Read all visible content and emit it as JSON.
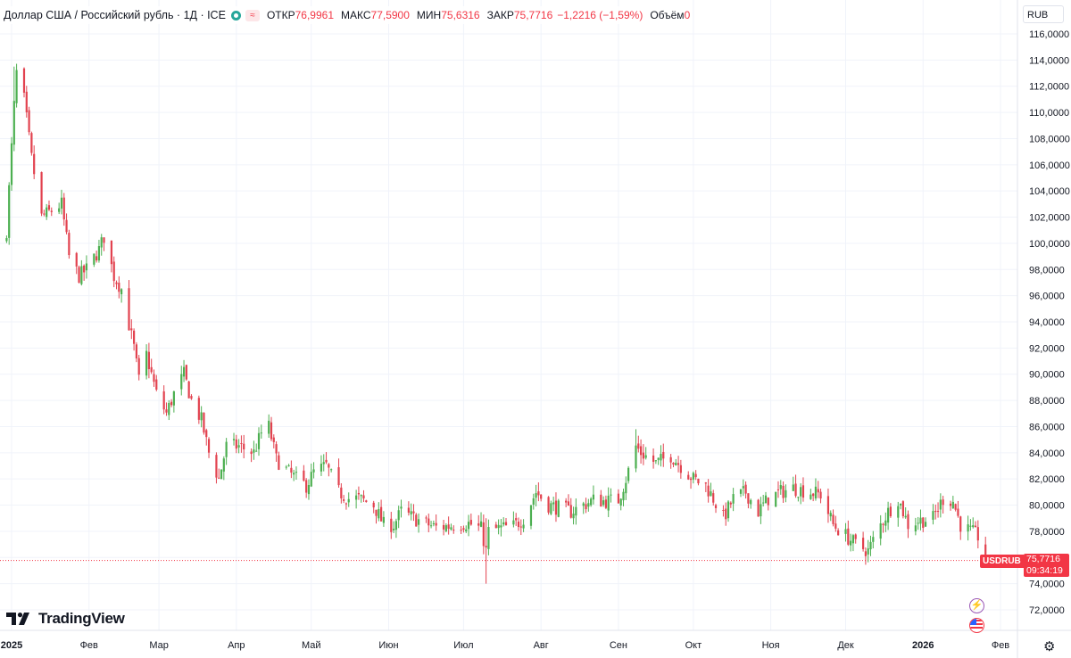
{
  "legend": {
    "symbol": "Доллар США / Российский рубль · 1Д · ICE",
    "open_label": "ОТКР",
    "open": "76,9961",
    "high_label": "МАКС",
    "high": "77,5900",
    "low_label": "МИН",
    "low": "75,6316",
    "close_label": "ЗАКР",
    "close": "75,7716",
    "change": "−1,2216 (−1,59%)",
    "volume_label": "Объём",
    "volume": "0"
  },
  "currency": "RUB",
  "logo": "TradingView",
  "price_tag": {
    "symbol": "USDRUB",
    "price": "75,7716",
    "countdown": "09:34:19"
  },
  "icons": [
    "lightning-icon",
    "us-flag-icon",
    "gear-icon"
  ],
  "colors": {
    "up": "#26a69a",
    "down": "#f23645",
    "candle_up": "#4caf50",
    "candle_down": "#e2424f"
  },
  "chart_data": {
    "type": "candlestick",
    "title": "Доллар США / Российский рубль · 1Д · ICE",
    "ylim": [
      71,
      117
    ],
    "y_ticks": [
      "116,0000",
      "114,0000",
      "112,0000",
      "110,0000",
      "108,0000",
      "106,0000",
      "104,0000",
      "102,0000",
      "100,0000",
      "98,0000",
      "96,0000",
      "94,0000",
      "92,0000",
      "90,0000",
      "88,0000",
      "86,0000",
      "84,0000",
      "82,0000",
      "80,0000",
      "78,0000",
      "76,0000",
      "74,0000",
      "72,0000"
    ],
    "x_ticks": [
      "2025",
      "Фев",
      "Мар",
      "Апр",
      "Май",
      "Июн",
      "Июл",
      "Авг",
      "Сен",
      "Окт",
      "Ноя",
      "Дек",
      "2026",
      "Фев"
    ],
    "x_tick_dates": [
      "2025-01-01",
      "2025-02-01",
      "2025-03-01",
      "2025-04-01",
      "2025-05-01",
      "2025-06-01",
      "2025-07-01",
      "2025-08-01",
      "2025-09-01",
      "2025-10-01",
      "2025-11-01",
      "2025-12-01",
      "2026-01-01",
      "2026-02-01"
    ],
    "last_price": 75.7716,
    "grid": true,
    "close_path": [
      [
        "2024-12-30",
        101.0
      ],
      [
        "2025-01-02",
        110.5
      ],
      [
        "2025-01-03",
        113.0
      ],
      [
        "2025-01-06",
        111.0
      ],
      [
        "2025-01-09",
        106.5
      ],
      [
        "2025-01-13",
        102.0
      ],
      [
        "2025-01-17",
        102.5
      ],
      [
        "2025-01-21",
        103.0
      ],
      [
        "2025-01-24",
        99.0
      ],
      [
        "2025-01-28",
        97.5
      ],
      [
        "2025-01-31",
        98.0
      ],
      [
        "2025-02-05",
        99.5
      ],
      [
        "2025-02-07",
        100.5
      ],
      [
        "2025-02-11",
        97.5
      ],
      [
        "2025-02-14",
        96.5
      ],
      [
        "2025-02-19",
        92.0
      ],
      [
        "2025-02-21",
        89.5
      ],
      [
        "2025-02-24",
        91.5
      ],
      [
        "2025-02-28",
        88.5
      ],
      [
        "2025-03-04",
        87.0
      ],
      [
        "2025-03-07",
        88.5
      ],
      [
        "2025-03-11",
        90.0
      ],
      [
        "2025-03-14",
        88.0
      ],
      [
        "2025-03-18",
        86.5
      ],
      [
        "2025-03-21",
        84.0
      ],
      [
        "2025-03-25",
        82.0
      ],
      [
        "2025-03-28",
        84.5
      ],
      [
        "2025-04-02",
        84.5
      ],
      [
        "2025-04-08",
        84.0
      ],
      [
        "2025-04-11",
        85.5
      ],
      [
        "2025-04-14",
        86.0
      ],
      [
        "2025-04-17",
        83.5
      ],
      [
        "2025-04-22",
        82.5
      ],
      [
        "2025-04-25",
        82.0
      ],
      [
        "2025-04-29",
        81.5
      ],
      [
        "2025-05-02",
        82.5
      ],
      [
        "2025-05-07",
        83.0
      ],
      [
        "2025-05-12",
        81.0
      ],
      [
        "2025-05-16",
        80.5
      ],
      [
        "2025-05-20",
        80.5
      ],
      [
        "2025-05-26",
        80.0
      ],
      [
        "2025-05-30",
        78.5
      ],
      [
        "2025-06-03",
        78.5
      ],
      [
        "2025-06-06",
        79.5
      ],
      [
        "2025-06-11",
        79.0
      ],
      [
        "2025-06-17",
        78.5
      ],
      [
        "2025-06-20",
        78.3
      ],
      [
        "2025-06-25",
        78.4
      ],
      [
        "2025-06-30",
        78.6
      ],
      [
        "2025-07-03",
        78.6
      ],
      [
        "2025-07-08",
        78.2
      ],
      [
        "2025-07-10",
        76.5
      ],
      [
        "2025-07-11",
        78.0
      ],
      [
        "2025-07-15",
        78.2
      ],
      [
        "2025-07-21",
        78.4
      ],
      [
        "2025-07-25",
        79.0
      ],
      [
        "2025-07-30",
        81.0
      ],
      [
        "2025-08-04",
        80.0
      ],
      [
        "2025-08-08",
        79.8
      ],
      [
        "2025-08-13",
        79.5
      ],
      [
        "2025-08-18",
        80.0
      ],
      [
        "2025-08-22",
        80.4
      ],
      [
        "2025-08-27",
        80.3
      ],
      [
        "2025-09-01",
        80.4
      ],
      [
        "2025-09-04",
        82.0
      ],
      [
        "2025-09-08",
        84.5
      ],
      [
        "2025-09-10",
        84.0
      ],
      [
        "2025-09-16",
        83.2
      ],
      [
        "2025-09-22",
        83.8
      ],
      [
        "2025-09-26",
        83.0
      ],
      [
        "2025-10-01",
        82.0
      ],
      [
        "2025-10-06",
        81.5
      ],
      [
        "2025-10-09",
        80.5
      ],
      [
        "2025-10-13",
        79.0
      ],
      [
        "2025-10-17",
        80.5
      ],
      [
        "2025-10-22",
        81.0
      ],
      [
        "2025-10-27",
        79.5
      ],
      [
        "2025-10-31",
        80.5
      ],
      [
        "2025-11-05",
        81.0
      ],
      [
        "2025-11-10",
        81.3
      ],
      [
        "2025-11-17",
        81.0
      ],
      [
        "2025-11-21",
        80.8
      ],
      [
        "2025-11-26",
        78.5
      ],
      [
        "2025-12-02",
        77.5
      ],
      [
        "2025-12-05",
        77.0
      ],
      [
        "2025-12-10",
        76.5
      ],
      [
        "2025-12-15",
        78.5
      ],
      [
        "2025-12-18",
        79.5
      ],
      [
        "2025-12-22",
        80.5
      ],
      [
        "2025-12-26",
        78.5
      ],
      [
        "2025-12-30",
        78.8
      ],
      [
        "2026-01-05",
        79.0
      ],
      [
        "2026-01-09",
        80.5
      ],
      [
        "2026-01-13",
        80.3
      ],
      [
        "2026-01-16",
        78.5
      ],
      [
        "2026-01-20",
        78.0
      ],
      [
        "2026-01-24",
        77.5
      ],
      [
        "2026-01-26",
        76.3
      ]
    ]
  }
}
